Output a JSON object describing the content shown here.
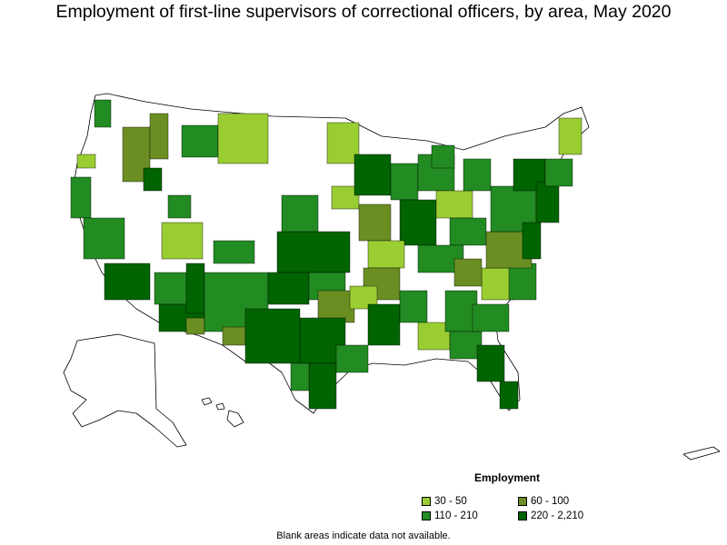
{
  "title": "Employment of first-line supervisors of correctional officers, by area, May 2020",
  "legend": {
    "title": "Employment",
    "items": [
      {
        "label": "30 - 50",
        "color": "#9acd32"
      },
      {
        "label": "60 - 100",
        "color": "#6b8e23"
      },
      {
        "label": "110 - 210",
        "color": "#228b22"
      },
      {
        "label": "220 - 2,210",
        "color": "#006400"
      }
    ]
  },
  "note": "Blank areas indicate data not available."
}
